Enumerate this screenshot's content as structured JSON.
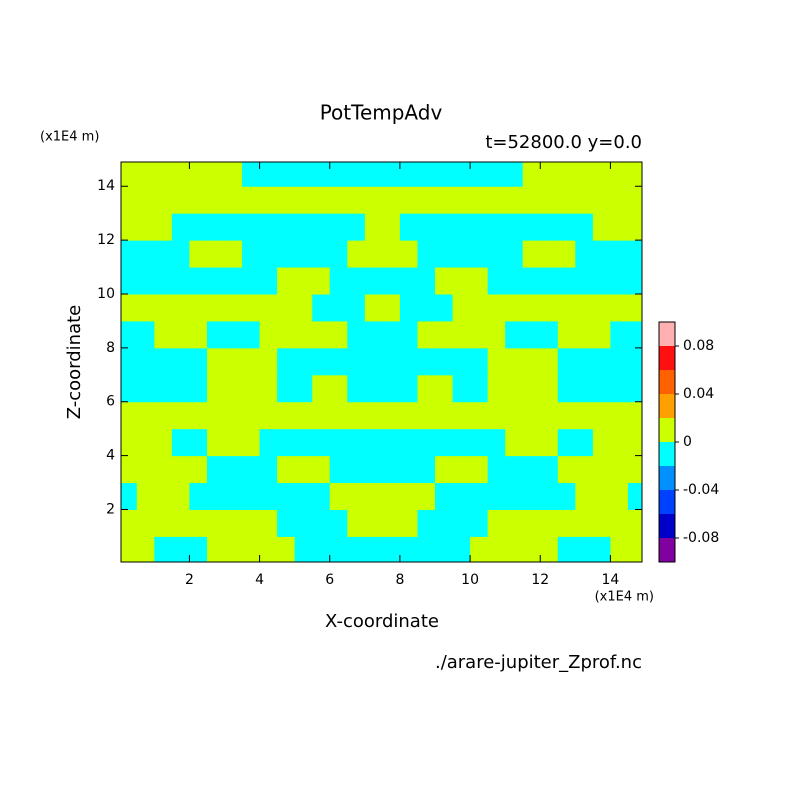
{
  "chart_data": {
    "type": "contour",
    "title": "PotTempAdv",
    "subtitle": "t=52800.0 y=0.0",
    "xlabel": "X-coordinate",
    "ylabel": "Z-coordinate",
    "x_unit": "(x1E4 m)",
    "y_unit": "(x1E4 m)",
    "source": "./arare-jupiter_Zprof.nc",
    "xlim": [
      0.05,
      14.9
    ],
    "ylim": [
      0.05,
      14.9
    ],
    "xticks": [
      2,
      4,
      6,
      8,
      10,
      12,
      14
    ],
    "yticks": [
      2,
      4,
      6,
      8,
      10,
      12,
      14
    ],
    "levels": [
      -0.1,
      -0.08,
      -0.06,
      -0.04,
      -0.02,
      0,
      0.02,
      0.04,
      0.06,
      0.08,
      0.1
    ],
    "colors": [
      "#8000a0",
      "#0000c8",
      "#0040ff",
      "#0090ff",
      "#00ffff",
      "#ccff00",
      "#ffa000",
      "#ff6000",
      "#ff1010",
      "#ffb0b0"
    ],
    "colorbar_ticks": [
      -0.08,
      -0.04,
      0,
      0.04,
      0.08
    ],
    "x": [
      0.25,
      0.75,
      1.25,
      1.75,
      2.25,
      2.75,
      3.25,
      3.75,
      4.25,
      4.75,
      5.25,
      5.75,
      6.25,
      6.75,
      7.25,
      7.75,
      8.25,
      8.75,
      9.25,
      9.75,
      10.25,
      10.75,
      11.25,
      11.75,
      12.25,
      12.75,
      13.25,
      13.75,
      14.25,
      14.75
    ],
    "y": [
      0.5,
      1.5,
      2.5,
      3.5,
      4.5,
      5.5,
      6.5,
      7.5,
      8.5,
      9.5,
      10.5,
      11.5,
      12.5,
      13.5,
      14.5
    ],
    "z": [
      [
        0.01,
        0.01,
        -0.01,
        -0.01,
        -0.01,
        0.01,
        0.01,
        0.01,
        0.01,
        0.01,
        -0.01,
        -0.01,
        -0.01,
        -0.01,
        -0.01,
        -0.01,
        -0.01,
        -0.01,
        -0.01,
        -0.01,
        0.01,
        0.01,
        0.01,
        0.01,
        0.01,
        -0.01,
        -0.01,
        -0.01,
        0.01,
        0.01
      ],
      [
        0.01,
        0.01,
        0.01,
        0.01,
        0.01,
        0.01,
        0.01,
        0.01,
        0.01,
        -0.01,
        -0.01,
        -0.01,
        -0.01,
        0.01,
        0.01,
        0.01,
        0.01,
        -0.01,
        -0.01,
        -0.01,
        -0.01,
        0.01,
        0.01,
        0.01,
        0.01,
        0.01,
        0.01,
        0.01,
        0.01,
        0.01
      ],
      [
        -0.01,
        0.01,
        0.01,
        0.01,
        -0.01,
        -0.01,
        -0.01,
        -0.01,
        -0.01,
        -0.01,
        -0.01,
        -0.01,
        0.01,
        0.01,
        0.01,
        0.01,
        0.01,
        0.01,
        -0.01,
        -0.01,
        -0.01,
        -0.01,
        -0.01,
        -0.01,
        -0.01,
        -0.01,
        0.01,
        0.01,
        0.01,
        -0.01
      ],
      [
        0.01,
        0.01,
        0.01,
        0.01,
        0.01,
        -0.01,
        -0.01,
        -0.01,
        -0.01,
        0.01,
        0.01,
        0.01,
        -0.01,
        -0.01,
        -0.01,
        -0.01,
        -0.01,
        -0.01,
        0.01,
        0.01,
        0.01,
        -0.01,
        -0.01,
        -0.01,
        -0.01,
        0.01,
        0.01,
        0.01,
        0.01,
        0.01
      ],
      [
        0.01,
        0.01,
        0.01,
        -0.01,
        -0.01,
        0.01,
        0.01,
        0.01,
        -0.01,
        -0.01,
        -0.01,
        -0.01,
        -0.01,
        -0.01,
        -0.01,
        -0.01,
        -0.01,
        -0.01,
        -0.01,
        -0.01,
        -0.01,
        -0.01,
        0.01,
        0.01,
        0.01,
        -0.01,
        -0.01,
        0.01,
        0.01,
        0.01
      ],
      [
        0.01,
        0.01,
        0.01,
        0.01,
        0.01,
        0.01,
        0.01,
        0.01,
        0.01,
        0.01,
        0.01,
        0.01,
        0.01,
        0.01,
        0.01,
        0.01,
        0.01,
        0.01,
        0.01,
        0.01,
        0.01,
        0.01,
        0.01,
        0.01,
        0.01,
        0.01,
        0.01,
        0.01,
        0.01,
        0.01
      ],
      [
        -0.01,
        -0.01,
        -0.01,
        -0.01,
        -0.01,
        0.01,
        0.01,
        0.01,
        0.01,
        -0.01,
        -0.01,
        0.01,
        0.01,
        -0.01,
        -0.01,
        -0.01,
        -0.01,
        0.01,
        0.01,
        -0.01,
        -0.01,
        0.01,
        0.01,
        0.01,
        0.01,
        -0.01,
        -0.01,
        -0.01,
        -0.01,
        -0.01
      ],
      [
        -0.01,
        -0.01,
        -0.01,
        -0.01,
        -0.01,
        0.01,
        0.01,
        0.01,
        0.01,
        -0.01,
        -0.01,
        -0.01,
        -0.01,
        -0.01,
        -0.01,
        -0.01,
        -0.01,
        -0.01,
        -0.01,
        -0.01,
        -0.01,
        0.01,
        0.01,
        0.01,
        0.01,
        -0.01,
        -0.01,
        -0.01,
        -0.01,
        -0.01
      ],
      [
        -0.01,
        -0.01,
        0.01,
        0.01,
        0.01,
        -0.01,
        -0.01,
        -0.01,
        0.01,
        0.01,
        0.01,
        0.01,
        0.01,
        -0.01,
        -0.01,
        -0.01,
        -0.01,
        0.01,
        0.01,
        0.01,
        0.01,
        0.01,
        -0.01,
        -0.01,
        -0.01,
        0.01,
        0.01,
        0.01,
        -0.01,
        -0.01
      ],
      [
        0.01,
        0.01,
        0.01,
        0.01,
        0.01,
        0.01,
        0.01,
        0.01,
        0.01,
        0.01,
        0.01,
        -0.01,
        -0.01,
        -0.01,
        0.01,
        0.01,
        -0.01,
        -0.01,
        -0.01,
        0.01,
        0.01,
        0.01,
        0.01,
        0.01,
        0.01,
        0.01,
        0.01,
        0.01,
        0.01,
        0.01
      ],
      [
        -0.01,
        -0.01,
        -0.01,
        -0.01,
        -0.01,
        -0.01,
        -0.01,
        -0.01,
        -0.01,
        0.01,
        0.01,
        0.01,
        -0.01,
        -0.01,
        -0.01,
        -0.01,
        -0.01,
        -0.01,
        0.01,
        0.01,
        0.01,
        -0.01,
        -0.01,
        -0.01,
        -0.01,
        -0.01,
        -0.01,
        -0.01,
        -0.01,
        -0.01
      ],
      [
        -0.01,
        -0.01,
        -0.01,
        -0.01,
        0.01,
        0.01,
        0.01,
        -0.01,
        -0.01,
        -0.01,
        -0.01,
        -0.01,
        -0.01,
        0.01,
        0.01,
        0.01,
        0.01,
        -0.01,
        -0.01,
        -0.01,
        -0.01,
        -0.01,
        -0.01,
        0.01,
        0.01,
        0.01,
        -0.01,
        -0.01,
        -0.01,
        -0.01
      ],
      [
        0.01,
        0.01,
        0.01,
        -0.01,
        -0.01,
        -0.01,
        -0.01,
        -0.01,
        -0.01,
        -0.01,
        -0.01,
        -0.01,
        -0.01,
        -0.01,
        0.01,
        0.01,
        -0.01,
        -0.01,
        -0.01,
        -0.01,
        -0.01,
        -0.01,
        -0.01,
        -0.01,
        -0.01,
        -0.01,
        -0.01,
        0.01,
        0.01,
        0.01
      ],
      [
        0.01,
        0.01,
        0.01,
        0.01,
        0.01,
        0.01,
        0.01,
        0.01,
        0.01,
        0.01,
        0.01,
        0.01,
        0.01,
        0.01,
        0.01,
        0.01,
        0.01,
        0.01,
        0.01,
        0.01,
        0.01,
        0.01,
        0.01,
        0.01,
        0.01,
        0.01,
        0.01,
        0.01,
        0.01,
        0.01
      ],
      [
        0.01,
        0.01,
        0.01,
        0.01,
        0.01,
        0.01,
        0.01,
        -0.01,
        -0.01,
        -0.01,
        -0.01,
        -0.01,
        -0.01,
        -0.01,
        -0.01,
        -0.01,
        -0.01,
        -0.01,
        -0.01,
        -0.01,
        -0.01,
        -0.01,
        -0.01,
        0.01,
        0.01,
        0.01,
        0.01,
        0.01,
        0.01,
        0.01
      ]
    ]
  }
}
